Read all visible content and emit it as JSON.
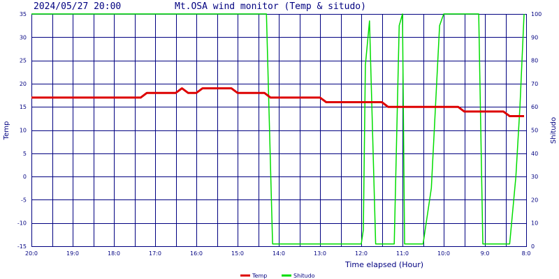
{
  "header": {
    "timestamp": "2024/05/27 20:00",
    "title": "Mt.OSA wind monitor (Temp & situdo)"
  },
  "chart_data": {
    "type": "line",
    "title": "Mt.OSA wind monitor (Temp & situdo)",
    "xlabel": "Time elapsed (Hour)",
    "ylabel": "Temp",
    "y2label": "Shitudo",
    "x_range": [
      0,
      12
    ],
    "x_tick_labels": [
      "20:0",
      "19:0",
      "18:0",
      "17:0",
      "16:0",
      "15:0",
      "14:0",
      "13:0",
      "12:0",
      "11:0",
      "10:0",
      "9:0",
      "8:0"
    ],
    "ylim": [
      -15,
      35
    ],
    "y_ticks": [
      -15,
      -10,
      -5,
      0,
      5,
      10,
      15,
      20,
      25,
      30,
      35
    ],
    "y2lim": [
      0,
      100
    ],
    "y2_ticks": [
      0,
      10,
      20,
      30,
      40,
      50,
      60,
      70,
      80,
      90,
      100
    ],
    "grid": true,
    "legend_position": "bottom-center",
    "colors": {
      "grid": "#000080",
      "temp": "#dd0000",
      "shitudo": "#00dd00",
      "title": "#000080"
    },
    "series": [
      {
        "name": "Temp",
        "axis": "left",
        "points": [
          [
            0,
            17
          ],
          [
            2.65,
            17
          ],
          [
            2.8,
            18
          ],
          [
            3.5,
            18
          ],
          [
            3.65,
            19
          ],
          [
            3.8,
            18
          ],
          [
            4.0,
            18
          ],
          [
            4.15,
            19
          ],
          [
            4.85,
            19
          ],
          [
            5.0,
            18
          ],
          [
            5.65,
            18
          ],
          [
            5.8,
            17
          ],
          [
            7.0,
            17
          ],
          [
            7.15,
            16
          ],
          [
            8.5,
            16
          ],
          [
            8.65,
            15
          ],
          [
            10.35,
            15
          ],
          [
            10.5,
            14
          ],
          [
            11.45,
            14
          ],
          [
            11.6,
            13
          ],
          [
            11.95,
            13
          ]
        ]
      },
      {
        "name": "Shitudo",
        "axis": "right",
        "points": [
          [
            0,
            100
          ],
          [
            5.7,
            100
          ],
          [
            5.85,
            1
          ],
          [
            8.0,
            1
          ],
          [
            8.05,
            7
          ],
          [
            8.1,
            78
          ],
          [
            8.2,
            97
          ],
          [
            8.35,
            1
          ],
          [
            8.8,
            1
          ],
          [
            8.92,
            95
          ],
          [
            9.0,
            100
          ],
          [
            9.05,
            1
          ],
          [
            9.5,
            1
          ],
          [
            9.7,
            25
          ],
          [
            9.9,
            95
          ],
          [
            10.0,
            100
          ],
          [
            10.85,
            100
          ],
          [
            10.95,
            1
          ],
          [
            11.6,
            1
          ],
          [
            11.75,
            30
          ],
          [
            11.85,
            60
          ],
          [
            11.95,
            100
          ]
        ]
      }
    ]
  }
}
